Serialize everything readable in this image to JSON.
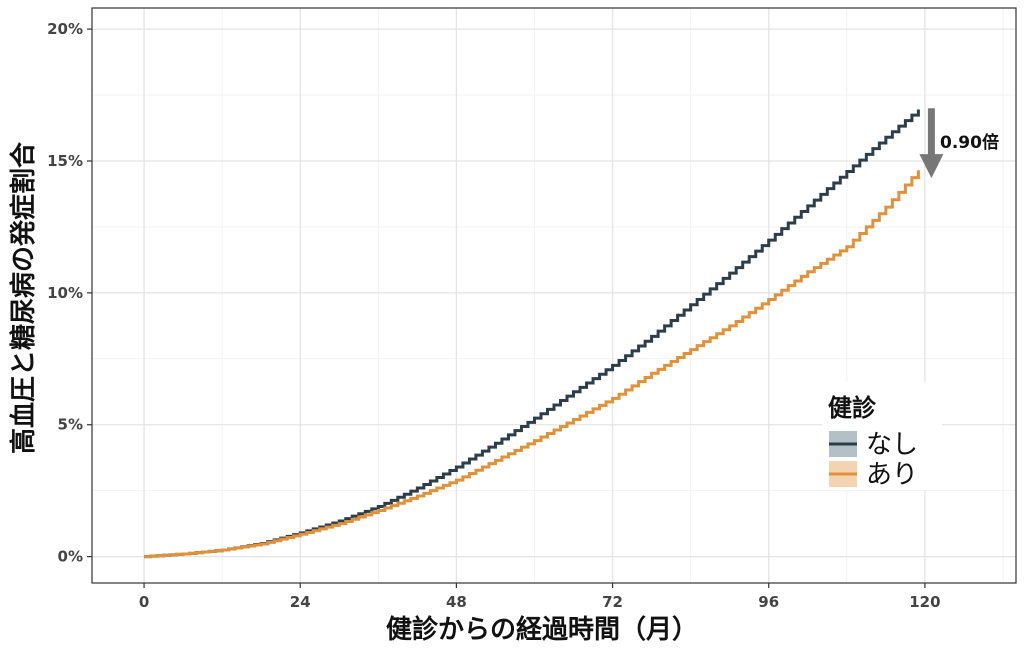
{
  "chart_data": {
    "type": "line",
    "xlabel": "健診からの経過時間（月）",
    "ylabel": "高血圧と糖尿病の発症割合",
    "xlim": [
      -8,
      134
    ],
    "ylim": [
      -0.01,
      0.208
    ],
    "x_ticks": [
      0,
      24,
      48,
      72,
      96,
      120
    ],
    "x_tick_labels": [
      "0",
      "24",
      "48",
      "72",
      "96",
      "120"
    ],
    "y_ticks": [
      0,
      0.05,
      0.1,
      0.15,
      0.2
    ],
    "y_tick_labels": [
      "0%",
      "5%",
      "10%",
      "15%",
      "20%"
    ],
    "grid": true,
    "legend": {
      "title": "健診",
      "placement": "right-inside",
      "entries": [
        "なし",
        "あり"
      ]
    },
    "annotation": {
      "text": "0.90倍",
      "arrow": "down",
      "from_y": 0.17,
      "to_y": 0.145,
      "x": 121
    },
    "series": [
      {
        "name": "なし",
        "color": "#2b3e4a",
        "band_color": "#b3c1c6",
        "x": [
          0,
          6,
          12,
          18,
          24,
          30,
          36,
          42,
          48,
          54,
          60,
          66,
          72,
          78,
          84,
          90,
          96,
          102,
          108,
          114,
          119
        ],
        "y": [
          0.0,
          0.001,
          0.0025,
          0.005,
          0.009,
          0.0135,
          0.019,
          0.026,
          0.034,
          0.043,
          0.0525,
          0.0625,
          0.0725,
          0.0835,
          0.0955,
          0.1075,
          0.12,
          0.133,
          0.146,
          0.159,
          0.1695
        ]
      },
      {
        "name": "あり",
        "color": "#e0913a",
        "band_color": "#f4d4b0",
        "x": [
          0,
          6,
          12,
          18,
          24,
          30,
          36,
          42,
          48,
          54,
          60,
          66,
          72,
          78,
          84,
          90,
          96,
          102,
          108,
          114,
          119
        ],
        "y": [
          0.0,
          0.001,
          0.0025,
          0.0048,
          0.0085,
          0.0125,
          0.0175,
          0.023,
          0.029,
          0.0365,
          0.044,
          0.052,
          0.06,
          0.0695,
          0.0785,
          0.0875,
          0.0975,
          0.108,
          0.1175,
          0.1325,
          0.1465
        ]
      }
    ]
  }
}
